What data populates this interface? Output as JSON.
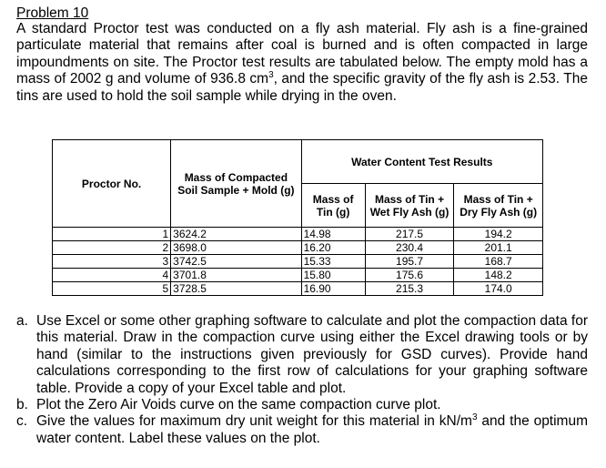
{
  "problem": {
    "title": "Problem 10",
    "intro_part1": "A standard Proctor test was conducted on a fly ash material.  Fly ash is a fine-grained particulate material that remains after coal is burned and is often compacted in large impoundments on site.  The Proctor test results are tabulated below.  The empty mold has a mass of 2002 g and volume of 936.8 cm",
    "intro_sup": "3",
    "intro_part2": ", and the specific gravity of the fly ash is 2.53.  The tins are used to hold the soil sample while drying in the oven."
  },
  "table": {
    "headers": {
      "proctor_no": "Proctor No.",
      "mass_compacted": "Mass of Compacted Soil Sample + Mold (g)",
      "water_content": "Water Content Test Results",
      "mass_tin": "Mass of Tin (g)",
      "mass_tin_wet": "Mass of Tin + Wet Fly Ash (g)",
      "mass_tin_dry": "Mass of Tin + Dry Fly Ash (g)"
    },
    "rows": [
      {
        "no": "1",
        "mold": "3624.2",
        "tin": "14.98",
        "wet": "217.5",
        "dry": "194.2"
      },
      {
        "no": "2",
        "mold": "3698.0",
        "tin": "16.20",
        "wet": "230.4",
        "dry": "201.1"
      },
      {
        "no": "3",
        "mold": "3742.5",
        "tin": "15.33",
        "wet": "195.7",
        "dry": "168.7"
      },
      {
        "no": "4",
        "mold": "3701.8",
        "tin": "15.80",
        "wet": "175.6",
        "dry": "148.2"
      },
      {
        "no": "5",
        "mold": "3728.5",
        "tin": "16.90",
        "wet": "215.3",
        "dry": "174.0"
      }
    ]
  },
  "questions": [
    {
      "mark": "a.",
      "text": "Use Excel or some other graphing software to calculate and plot the compaction data for this material.  Draw in the compaction curve using either the Excel drawing tools or by hand (similar to the instructions given previously for GSD curves).  Provide hand calculations corresponding to the first row of calculations for your graphing software table.  Provide a copy of your Excel table and plot."
    },
    {
      "mark": "b.",
      "text": "Plot the Zero Air Voids curve on the same compaction curve plot."
    },
    {
      "mark": "c.",
      "text_part1": "Give the values for maximum dry unit weight for this material in kN/m",
      "text_sup": "3",
      "text_part2": " and the optimum water content.  Label these values on the plot."
    }
  ]
}
